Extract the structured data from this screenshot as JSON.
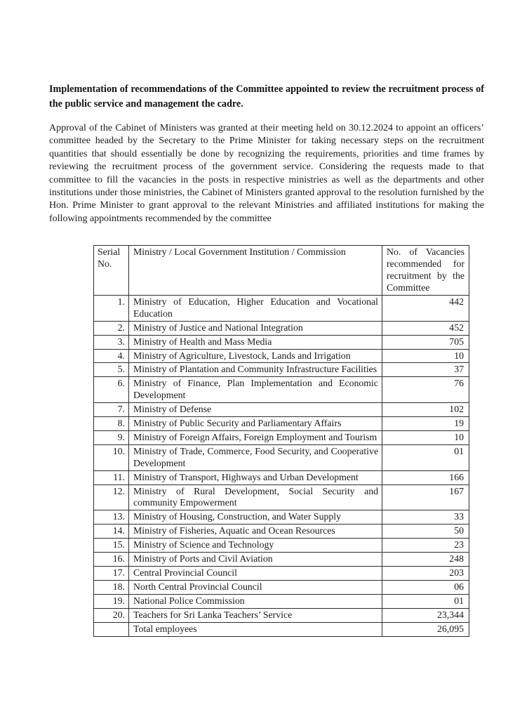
{
  "document": {
    "title": "Implementation of recommendations of the Committee appointed to review the recruitment process of the public service and management the cadre.",
    "paragraph": "Approval of the Cabinet of Ministers was granted at their meeting held on 30.12.2024 to appoint an officers’ committee headed by the Secretary to the Prime Minister for taking necessary steps on the recruitment quantities that should essentially be done by recognizing the requirements, priorities and time frames by reviewing the recruitment process of the government service. Considering the requests made to that committee to fill the vacancies in the posts in respective ministries as well as the departments and other institutions under those ministries, the Cabinet of Ministers granted approval to the resolution furnished by the Hon. Prime Minister to grant approval to the relevant Ministries and affiliated institutions for making the following appointments recommended by the committee"
  },
  "table": {
    "headers": [
      "Serial No.",
      "Ministry / Local Government Institution / Commission",
      "No. of Vacancies recommended for recruitment by the Committee"
    ],
    "rows": [
      {
        "serial": "1.",
        "ministry": "Ministry of Education, Higher Education and Vocational Education",
        "vacancies": "442"
      },
      {
        "serial": "2.",
        "ministry": "Ministry of Justice and National Integration",
        "vacancies": "452"
      },
      {
        "serial": "3.",
        "ministry": "Ministry of Health and Mass Media",
        "vacancies": "705"
      },
      {
        "serial": "4.",
        "ministry": "Ministry of Agriculture, Livestock, Lands and Irrigation",
        "vacancies": "10"
      },
      {
        "serial": "5.",
        "ministry": "Ministry of Plantation and Community Infrastructure Facilities",
        "vacancies": "37"
      },
      {
        "serial": "6.",
        "ministry": "Ministry of Finance, Plan Implementation and Economic Development",
        "vacancies": "76"
      },
      {
        "serial": "7.",
        "ministry": "Ministry of Defense",
        "vacancies": "102"
      },
      {
        "serial": "8.",
        "ministry": "Ministry of Public Security and Parliamentary Affairs",
        "vacancies": "19"
      },
      {
        "serial": "9.",
        "ministry": "Ministry of Foreign Affairs, Foreign Employment and Tourism",
        "vacancies": "10"
      },
      {
        "serial": "10.",
        "ministry": "Ministry of Trade, Commerce, Food Security, and Cooperative Development",
        "vacancies": "01"
      },
      {
        "serial": "11.",
        "ministry": "Ministry of Transport, Highways and Urban Development",
        "vacancies": "166"
      },
      {
        "serial": "12.",
        "ministry": "Ministry of Rural Development, Social Security and community Empowerment",
        "vacancies": "167"
      },
      {
        "serial": "13.",
        "ministry": "Ministry of Housing, Construction, and Water Supply",
        "vacancies": "33"
      },
      {
        "serial": "14.",
        "ministry": "Ministry of Fisheries, Aquatic and Ocean Resources",
        "vacancies": "50"
      },
      {
        "serial": "15.",
        "ministry": "Ministry of Science and Technology",
        "vacancies": "23"
      },
      {
        "serial": "16.",
        "ministry": "Ministry of Ports and Civil Aviation",
        "vacancies": "248"
      },
      {
        "serial": "17.",
        "ministry": "Central Provincial Council",
        "vacancies": "203"
      },
      {
        "serial": "18.",
        "ministry": "North Central Provincial Council",
        "vacancies": "06"
      },
      {
        "serial": "19.",
        "ministry": "National Police Commission",
        "vacancies": "01"
      },
      {
        "serial": "20.",
        "ministry": "Teachers for Sri Lanka Teachers’ Service",
        "vacancies": "23,344"
      },
      {
        "serial": "",
        "ministry": "Total employees",
        "vacancies": "26,095"
      }
    ]
  }
}
